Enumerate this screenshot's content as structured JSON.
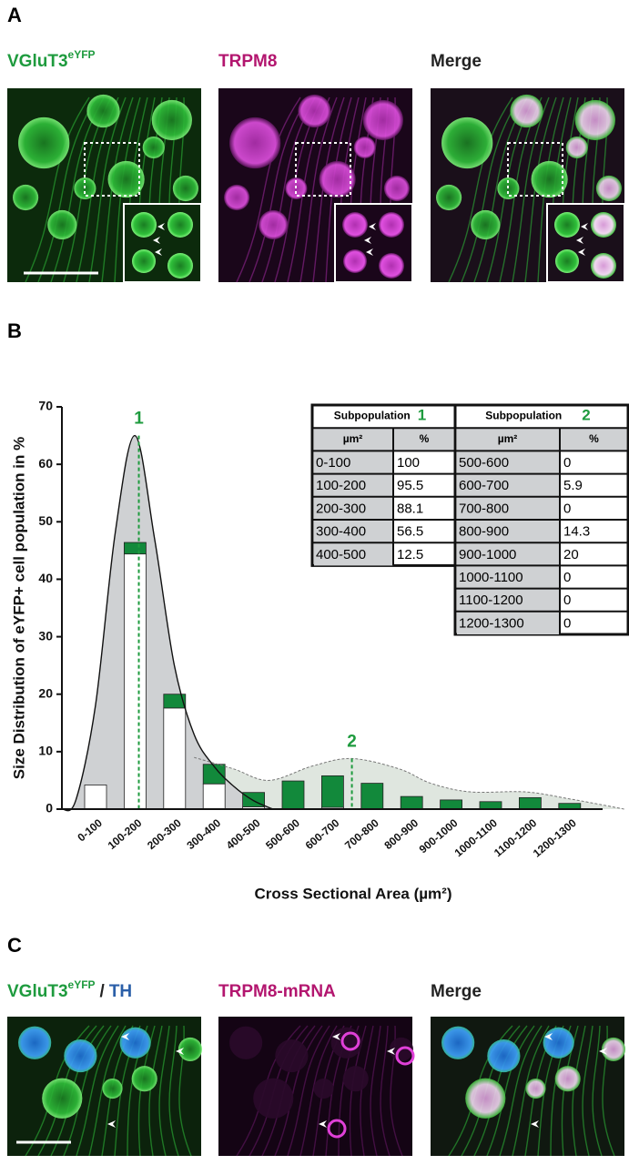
{
  "panels": [
    {
      "label": "A",
      "titles": [
        {
          "text": "VGluT3",
          "sup": "eYFP",
          "color": "#1e9b3e"
        },
        {
          "text": "TRPM8",
          "color": "#b3166f"
        },
        {
          "text": "Merge",
          "color": "#222222"
        }
      ]
    },
    {
      "label": "B"
    },
    {
      "label": "C",
      "titles": [
        {
          "text": "VGluT3",
          "sup": "eYFP",
          "color": "#1e9b3e",
          "extra": [
            {
              "text": "/",
              "color": "#222222"
            },
            {
              "text": "TH",
              "color": "#2b5fa8"
            }
          ]
        },
        {
          "text": "TRPM8-mRNA",
          "color": "#b3166f"
        },
        {
          "text": "Merge",
          "color": "#222222"
        }
      ]
    }
  ],
  "chart_data": {
    "type": "bar",
    "ylabel": "Size Distribution of eYFP+  cell population in %",
    "xlabel": "Cross Sectional Area (µm²)",
    "categories": [
      "0-100",
      "100-200",
      "200-300",
      "300-400",
      "400-500",
      "500-600",
      "600-700",
      "700-800",
      "800-900",
      "900-1000",
      "1000-1100",
      "1100-1200",
      "1200-1300"
    ],
    "series": [
      {
        "color": "#ffffff",
        "values": [
          4.2,
          44.4,
          17.6,
          4.4,
          0.4,
          0,
          0.3,
          0,
          0,
          0,
          0,
          0,
          0
        ]
      },
      {
        "color": "#12893b",
        "values": [
          0,
          2,
          2.4,
          3.4,
          2.5,
          4.9,
          5.5,
          4.5,
          2.2,
          1.6,
          1.3,
          2,
          1
        ]
      }
    ],
    "ylim": [
      0,
      70
    ],
    "yticks": [
      0,
      10,
      20,
      30,
      40,
      50,
      60,
      70
    ],
    "xlim": [
      -35,
      1400
    ],
    "curves": [
      {
        "fill": "#cfd1d3",
        "stroke": "#111111",
        "dashed": false,
        "x": [
          -35,
          0,
          50,
          100,
          150,
          200,
          250,
          300,
          350,
          400,
          450,
          500
        ],
        "y": [
          0,
          1.5,
          18,
          48,
          65,
          47,
          25,
          13,
          7.5,
          4,
          1.5,
          0
        ]
      },
      {
        "fill": "#dfe6df",
        "stroke": "#777777",
        "dashed": true,
        "x": [
          300,
          400,
          490,
          600,
          700,
          820,
          900,
          1000,
          1140,
          1250,
          1330,
          1390
        ],
        "y": [
          9,
          7,
          5,
          7.5,
          8.8,
          7,
          4.5,
          3,
          3,
          1.8,
          0.8,
          0
        ]
      }
    ],
    "peaks": [
      {
        "label": "1",
        "x": 160,
        "y": 65
      },
      {
        "label": "2",
        "x": 700,
        "y": 8.8
      }
    ],
    "peak_color": "#1e9b3e"
  },
  "tables": [
    {
      "title": "Subpopulation",
      "group": "1",
      "columns": [
        "µm²",
        "%"
      ],
      "rows": [
        [
          "0-100",
          "100"
        ],
        [
          "100-200",
          "95.5"
        ],
        [
          "200-300",
          "88.1"
        ],
        [
          "300-400",
          "56.5"
        ],
        [
          "400-500",
          "12.5"
        ]
      ]
    },
    {
      "title": "Subpopulation",
      "group": "2",
      "columns": [
        "µm²",
        "%"
      ],
      "rows": [
        [
          "500-600",
          "0"
        ],
        [
          "600-700",
          "5.9"
        ],
        [
          "700-800",
          "0"
        ],
        [
          "800-900",
          "14.3"
        ],
        [
          "900-1000",
          "20"
        ],
        [
          "1000-1100",
          "0"
        ],
        [
          "1100-1200",
          "0"
        ],
        [
          "1200-1300",
          "0"
        ]
      ]
    }
  ]
}
